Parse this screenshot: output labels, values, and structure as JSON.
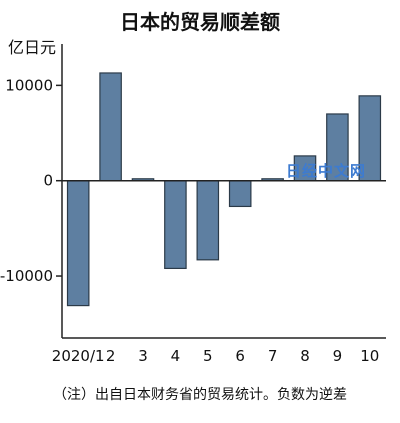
{
  "chart_data": {
    "type": "bar",
    "title": "日本的贸易顺差额",
    "ylabel": "亿日元",
    "categories": [
      "2020/1",
      "2",
      "3",
      "4",
      "5",
      "6",
      "7",
      "8",
      "9",
      "10"
    ],
    "values": [
      -13100,
      11300,
      200,
      -9200,
      -8300,
      -2700,
      200,
      2600,
      7000,
      8900
    ],
    "yticks": [
      10000,
      0,
      -10000
    ],
    "ylim": [
      -16500,
      13500
    ],
    "footnote": "（注）出自日本财务省的贸易统计。负数为逆差",
    "watermark": "日经中文网"
  }
}
